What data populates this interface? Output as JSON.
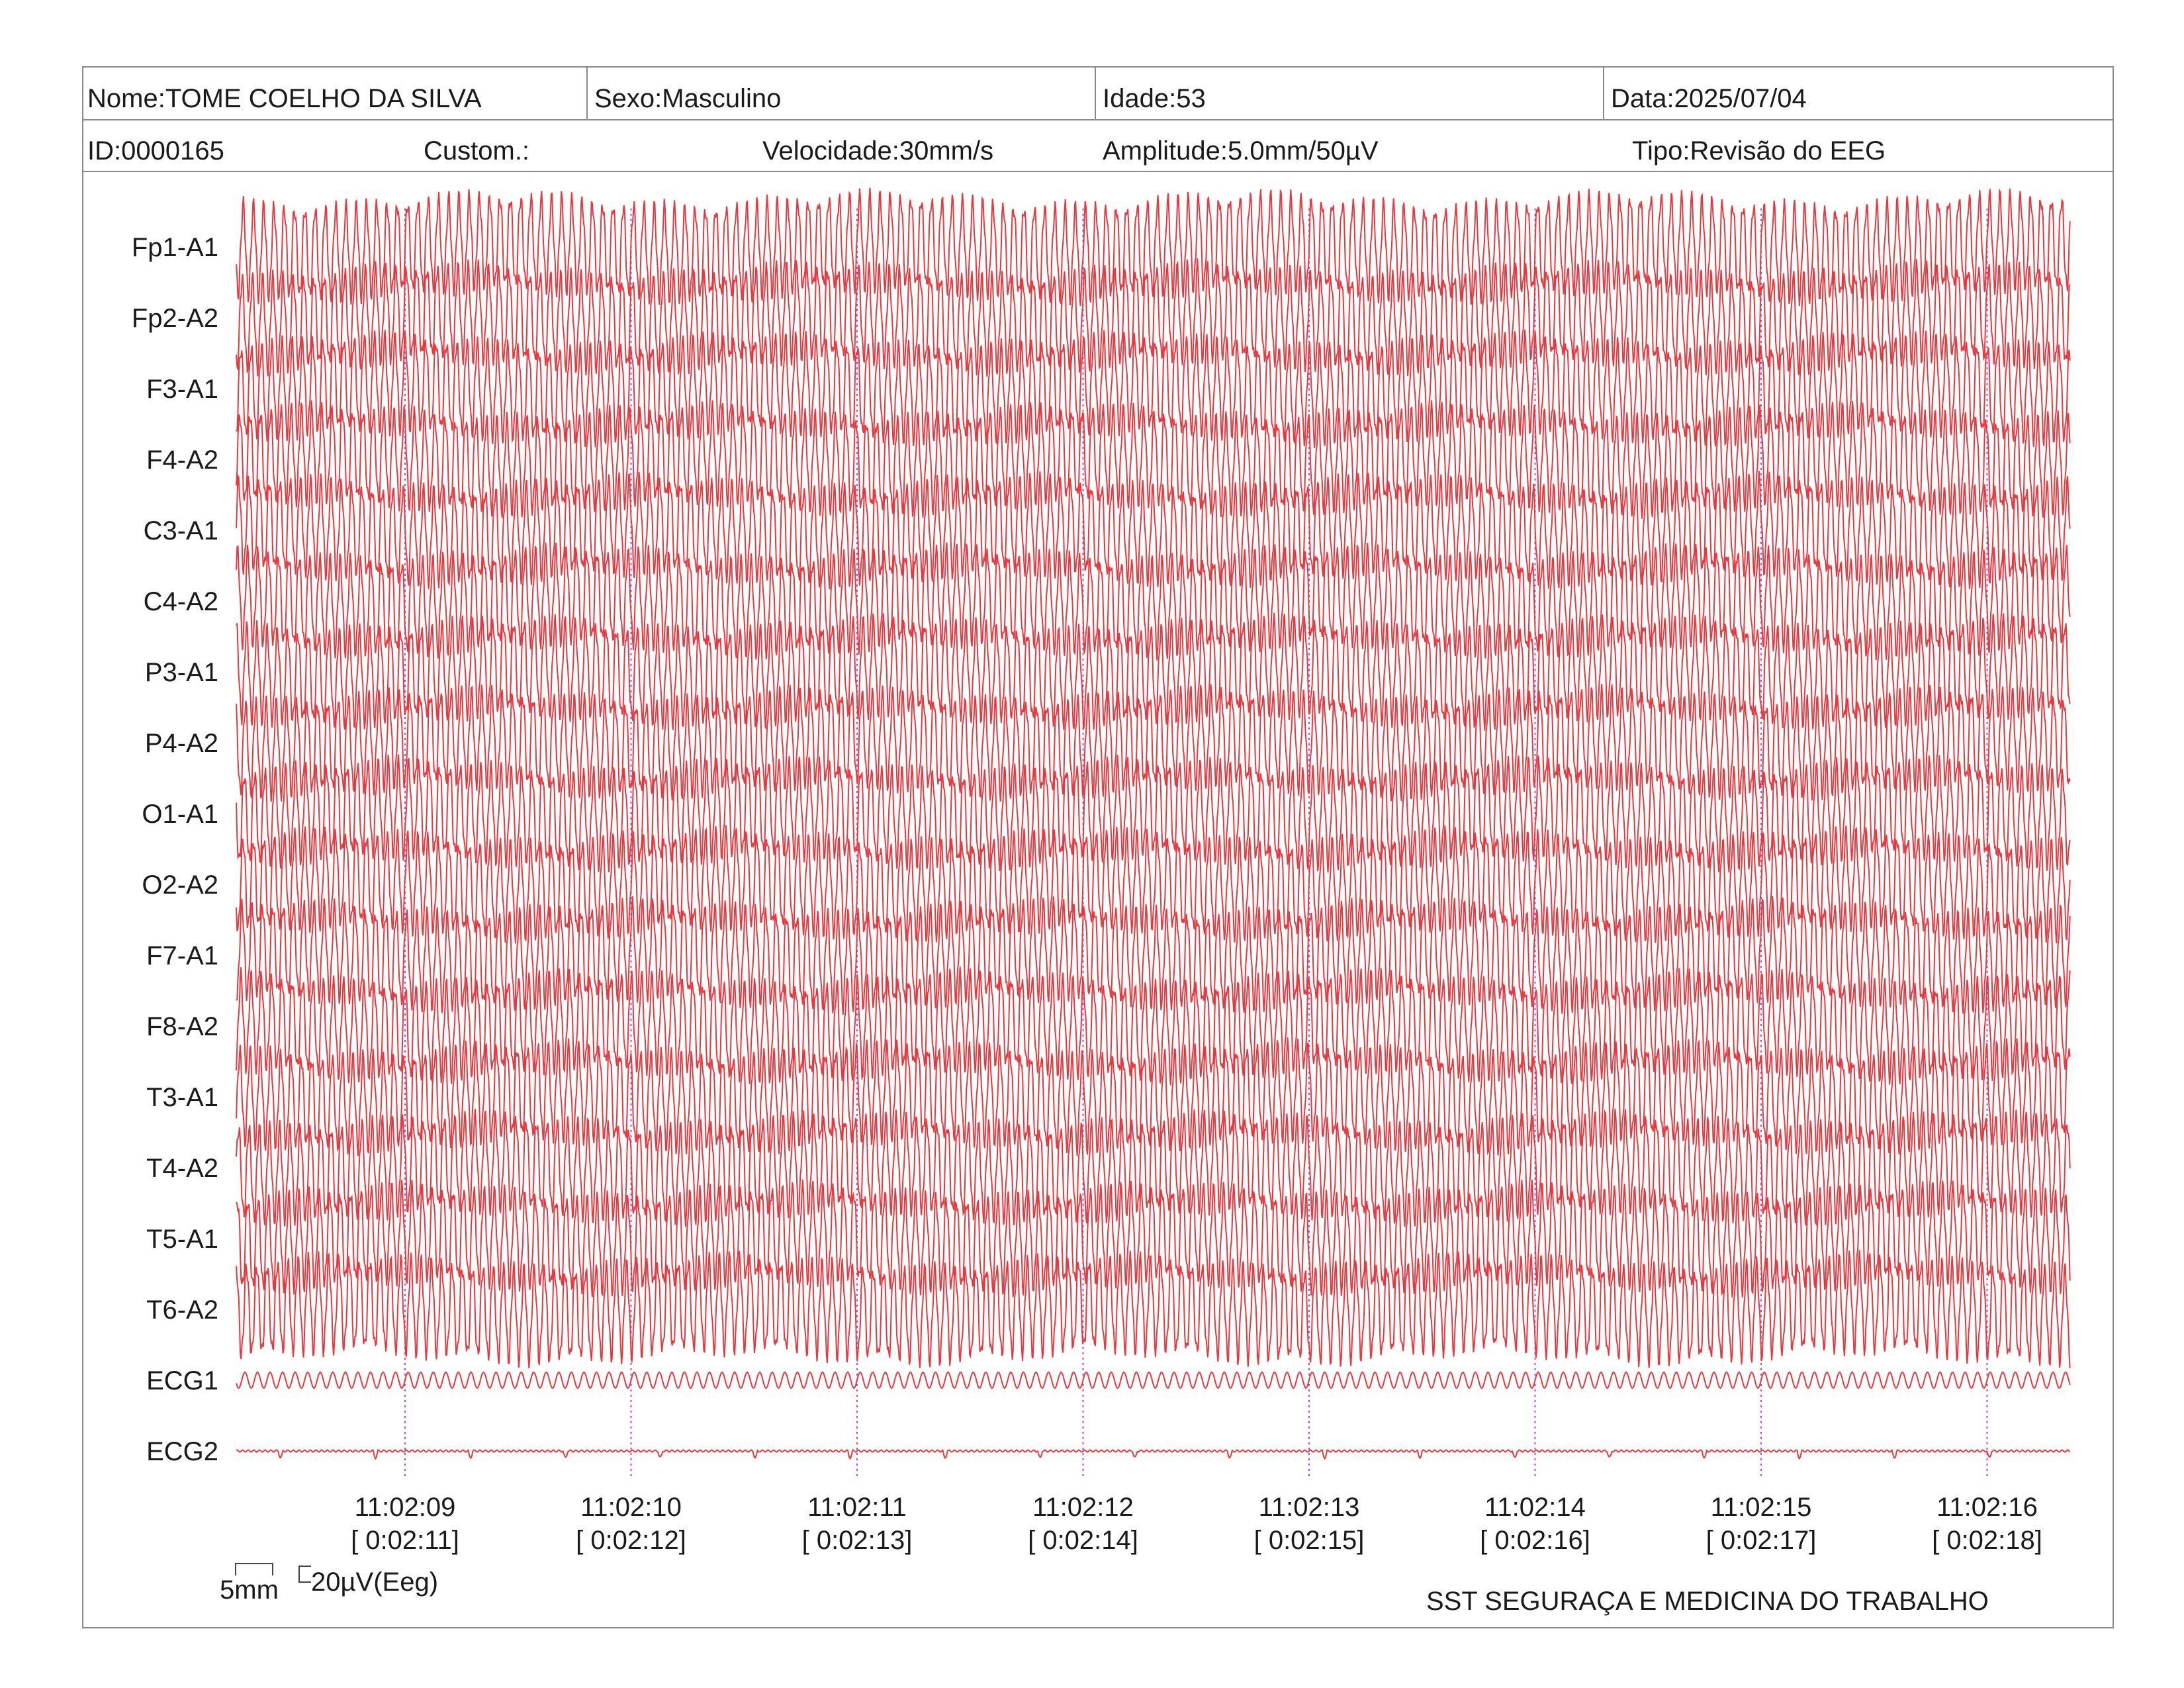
{
  "header": {
    "nome": "Nome:TOME COELHO DA SILVA",
    "sexo": "Sexo:Masculino",
    "idade": "Idade:53",
    "data": "Data:2025/07/04",
    "id": "ID:0000165",
    "custom": "Custom.:",
    "velocidade": "Velocidade:30mm/s",
    "amplitude": "Amplitude:5.0mm/50µV",
    "tipo": "Tipo:Revisão do EEG"
  },
  "calibration": {
    "length": "5mm",
    "amplitude": "20µV(Eeg)"
  },
  "footer": "SST SEGURAÇA E MEDICINA DO TRABALHO",
  "colors": {
    "trace": "#e8383d",
    "marker": "#c040e0",
    "border": "#8a8a8a"
  },
  "chart_data": {
    "type": "line",
    "channels": [
      "Fp1-A1",
      "Fp2-A2",
      "F3-A1",
      "F4-A2",
      "C3-A1",
      "C4-A2",
      "P3-A1",
      "P4-A2",
      "O1-A1",
      "O2-A2",
      "F7-A1",
      "F8-A2",
      "T3-A1",
      "T4-A2",
      "T5-A1",
      "T6-A2",
      "ECG1",
      "ECG2"
    ],
    "time_markers": [
      {
        "clock": "11:02:09",
        "elapsed": "[ 0:02:11]"
      },
      {
        "clock": "11:02:10",
        "elapsed": "[ 0:02:12]"
      },
      {
        "clock": "11:02:11",
        "elapsed": "[ 0:02:13]"
      },
      {
        "clock": "11:02:12",
        "elapsed": "[ 0:02:14]"
      },
      {
        "clock": "11:02:13",
        "elapsed": "[ 0:02:15]"
      },
      {
        "clock": "11:02:14",
        "elapsed": "[ 0:02:16]"
      },
      {
        "clock": "11:02:15",
        "elapsed": "[ 0:02:17]"
      },
      {
        "clock": "11:02:16",
        "elapsed": "[ 0:02:18]"
      }
    ],
    "sweep_start_seconds_before_first_marker": 0.75,
    "sweep_end_seconds_after_last_marker": 0.38,
    "eeg_dominant_frequency_hz": 22,
    "ecg1_frequency_hz": 18,
    "ecg2_beat_spacing_s": 0.42
  }
}
